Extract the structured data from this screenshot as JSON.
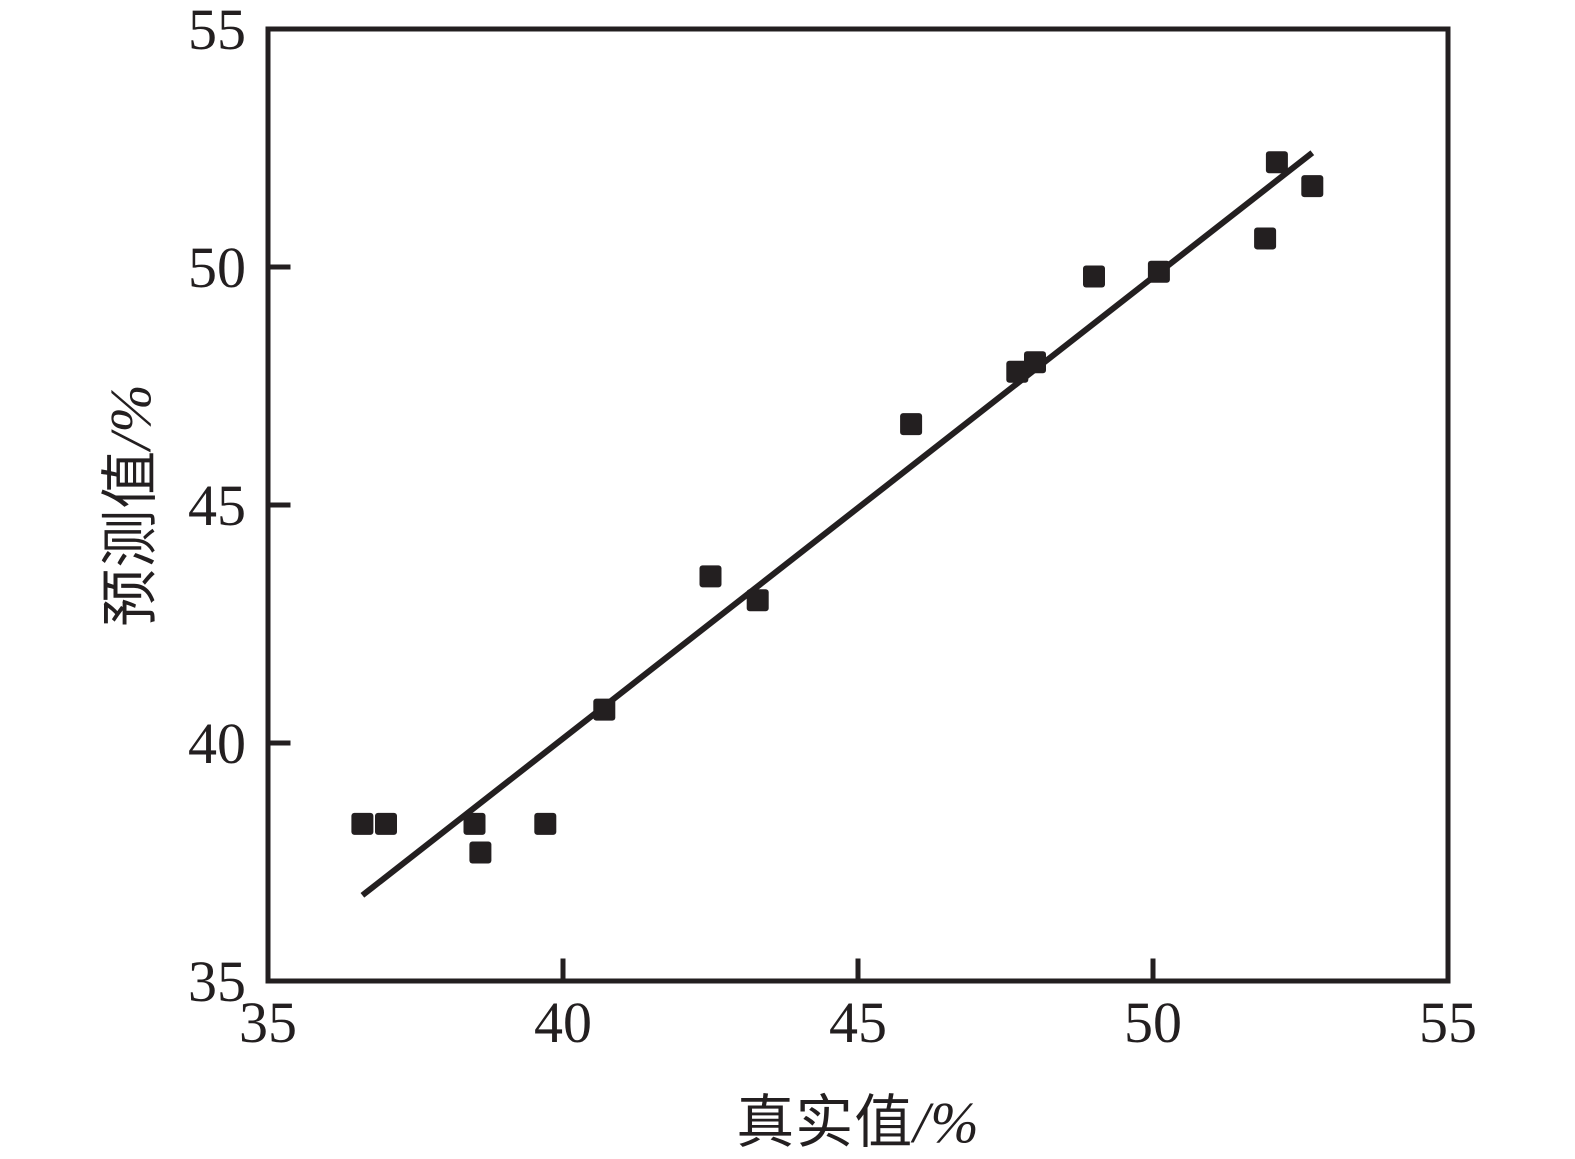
{
  "chart_data": {
    "type": "scatter",
    "title": "",
    "xlabel": "真实值/%",
    "ylabel": "预测值/%",
    "xlabel_parts": {
      "text": "真实值",
      "unit": "/%"
    },
    "ylabel_parts": {
      "text": "预测值",
      "unit": "/%"
    },
    "xlim": [
      35,
      55
    ],
    "ylim": [
      35,
      55
    ],
    "xticks": [
      35,
      40,
      45,
      50,
      55
    ],
    "yticks": [
      35,
      40,
      45,
      50,
      55
    ],
    "grid": false,
    "legend": "none",
    "marker": "filled-square",
    "points": [
      [
        36.6,
        38.3
      ],
      [
        37.0,
        38.3
      ],
      [
        38.5,
        38.3
      ],
      [
        38.6,
        37.7
      ],
      [
        39.7,
        38.3
      ],
      [
        40.7,
        40.7
      ],
      [
        42.5,
        43.5
      ],
      [
        43.3,
        43.0
      ],
      [
        45.9,
        46.7
      ],
      [
        47.7,
        47.8
      ],
      [
        48.0,
        48.0
      ],
      [
        49.0,
        49.8
      ],
      [
        50.1,
        49.9
      ],
      [
        51.9,
        50.6
      ],
      [
        52.1,
        52.2
      ],
      [
        52.7,
        51.7
      ]
    ],
    "fit_line": {
      "x1": 36.6,
      "y1": 36.8,
      "x2": 52.7,
      "y2": 52.4
    },
    "colors": {
      "ink": "#231f20",
      "background": "#ffffff"
    }
  }
}
